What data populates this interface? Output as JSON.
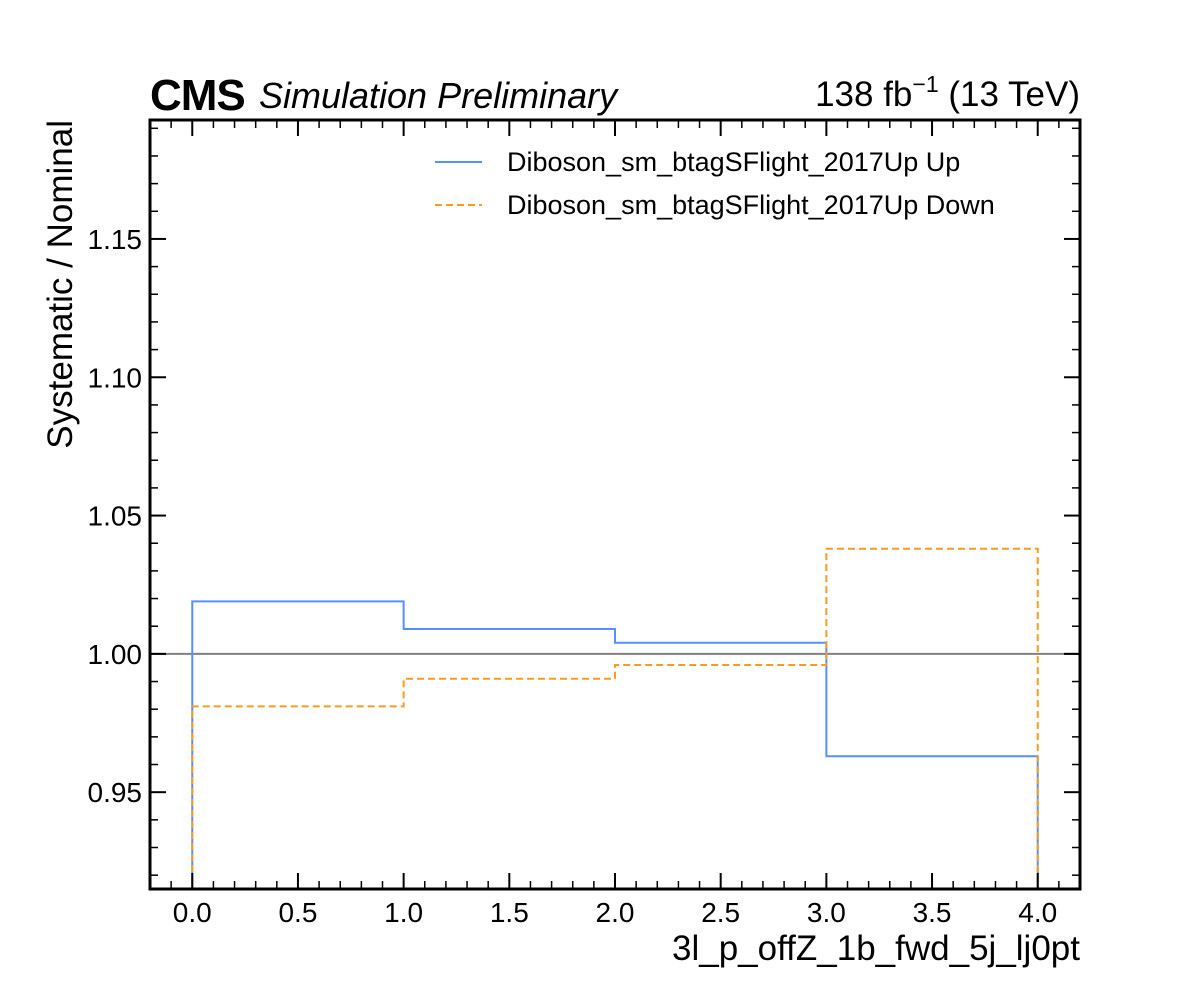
{
  "header": {
    "experiment": "CMS",
    "extra_text": "Simulation Preliminary",
    "lumi_prefix": "138 fb",
    "lumi_exponent": "−1",
    "lumi_suffix": " (13 TeV)"
  },
  "chart_data": {
    "type": "line",
    "style": "step-histogram",
    "xlabel": "3l_p_offZ_1b_fwd_5j_lj0pt",
    "ylabel": "Systematic / Nominal",
    "xlim": [
      -0.2,
      4.2
    ],
    "ylim": [
      0.915,
      1.193
    ],
    "x_ticks": [
      0.0,
      0.5,
      1.0,
      1.5,
      2.0,
      2.5,
      3.0,
      3.5,
      4.0
    ],
    "x_tick_labels": [
      "0.0",
      "0.5",
      "1.0",
      "1.5",
      "2.0",
      "2.5",
      "3.0",
      "3.5",
      "4.0"
    ],
    "y_ticks": [
      0.95,
      1.0,
      1.05,
      1.1,
      1.15
    ],
    "y_tick_labels": [
      "0.95",
      "1.00",
      "1.05",
      "1.10",
      "1.15"
    ],
    "bin_edges": [
      0,
      1,
      2,
      3,
      4
    ],
    "reference_line": 1.0,
    "reference_color": "#808080",
    "legend_position": "top-right",
    "series": [
      {
        "name": "Diboson_sm_btagSFlight_2017Up Up",
        "values": [
          1.019,
          1.009,
          1.004,
          0.963
        ],
        "color": "#5790fc",
        "dash": "solid"
      },
      {
        "name": "Diboson_sm_btagSFlight_2017Up Down",
        "values": [
          0.981,
          0.991,
          0.996,
          1.038
        ],
        "color": "#f89c20",
        "dash": "dashed"
      }
    ]
  }
}
